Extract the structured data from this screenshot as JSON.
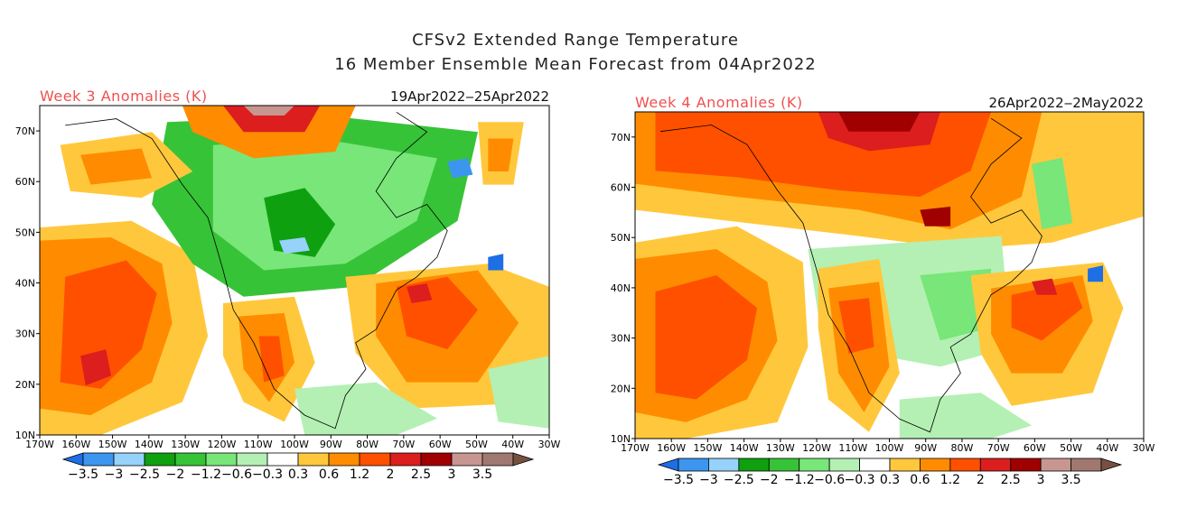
{
  "figure": {
    "title_line1": "CFSv2 Extended Range Temperature",
    "title_line2": "16 Member Ensemble Mean Forecast from 04Apr2022"
  },
  "panels": [
    {
      "id": "week3",
      "title": "Week 3 Anomalies (K)",
      "date_range": "19Apr2022‒25Apr2022",
      "lon_ticks": [
        "170W",
        "160W",
        "150W",
        "140W",
        "130W",
        "120W",
        "110W",
        "100W",
        "90W",
        "80W",
        "70W",
        "60W",
        "50W",
        "40W",
        "30W"
      ],
      "lat_ticks": [
        "10N",
        "20N",
        "30N",
        "40N",
        "50N",
        "60N",
        "70N"
      ],
      "colorbar_labels": [
        "−3.5",
        "−3",
        "−2.5",
        "−2",
        "−1.2",
        "−0.6",
        "−0.3",
        "0.3",
        "0.6",
        "1.2",
        "2",
        "2.5",
        "3",
        "3.5"
      ]
    },
    {
      "id": "week4",
      "title": "Week 4 Anomalies (K)",
      "date_range": "26Apr2022‒2May2022",
      "lon_ticks": [
        "170W",
        "160W",
        "150W",
        "140W",
        "130W",
        "120W",
        "110W",
        "100W",
        "90W",
        "80W",
        "70W",
        "60W",
        "50W",
        "40W",
        "30W"
      ],
      "lat_ticks": [
        "10N",
        "20N",
        "30N",
        "40N",
        "50N",
        "60N",
        "70N"
      ],
      "colorbar_labels": [
        "−3.5",
        "−3",
        "−2.5",
        "−2",
        "−1.2",
        "−0.6",
        "−0.3",
        "0.3",
        "0.6",
        "1.2",
        "2",
        "2.5",
        "3",
        "3.5"
      ]
    }
  ],
  "colorbar": {
    "colors": [
      "#1e6ee6",
      "#3c96f0",
      "#96d2fa",
      "#0fa00f",
      "#37c337",
      "#78e678",
      "#b4f0b4",
      "#ffffff",
      "#ffc83c",
      "#ff8c00",
      "#ff5000",
      "#dc1e1e",
      "#a00000",
      "#c89690",
      "#a07870",
      "#785040"
    ]
  },
  "colors": {
    "ocean_bg": "#ffffff",
    "coast": "#000000",
    "title_red": "#f05050"
  }
}
